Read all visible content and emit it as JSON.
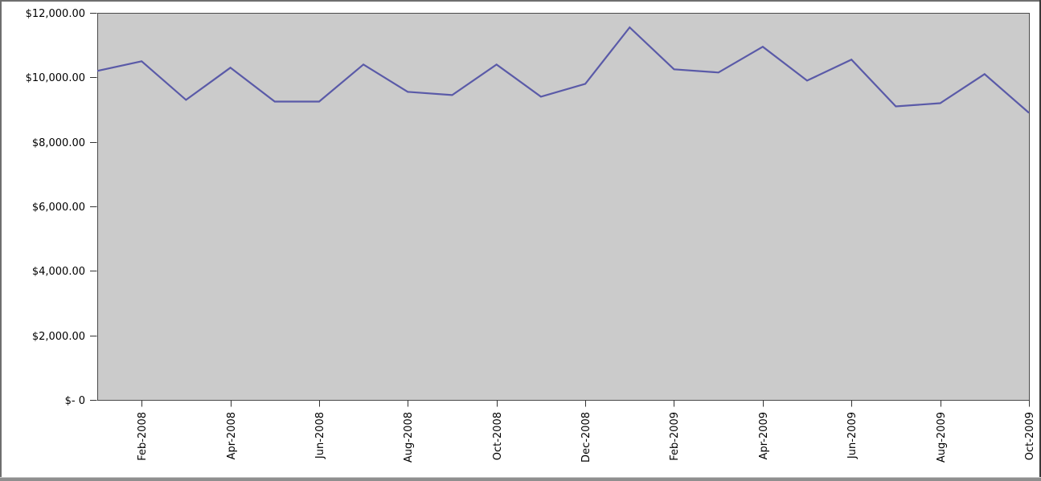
{
  "chart_data": {
    "type": "line",
    "title": "",
    "xlabel": "",
    "ylabel": "",
    "categories": [
      "Jan-2008",
      "Feb-2008",
      "Mar-2008",
      "Apr-2008",
      "May-2008",
      "Jun-2008",
      "Jul-2008",
      "Aug-2008",
      "Sep-2008",
      "Oct-2008",
      "Nov-2008",
      "Dec-2008",
      "Jan-2009",
      "Feb-2009",
      "Mar-2009",
      "Apr-2009",
      "May-2009",
      "Jun-2009",
      "Jul-2009",
      "Aug-2009",
      "Sep-2009",
      "Oct-2009"
    ],
    "values": [
      10200,
      10500,
      9300,
      10300,
      9250,
      9250,
      10400,
      9550,
      9450,
      10400,
      9400,
      9800,
      11550,
      10250,
      10150,
      10950,
      9900,
      10550,
      9100,
      9200,
      10100,
      8900
    ],
    "x_tick_labels": [
      "Feb-2008",
      "Apr-2008",
      "Jun-2008",
      "Aug-2008",
      "Oct-2008",
      "Dec-2008",
      "Feb-2009",
      "Apr-2009",
      "Jun-2009",
      "Aug-2009",
      "Oct-2009"
    ],
    "x_tick_interval": 2,
    "y_ticks": [
      12000,
      10000,
      8000,
      6000,
      4000,
      2000,
      0
    ],
    "y_tick_labels": [
      "$12,000.00",
      "$10,000.00",
      "$8,000.00",
      "$6,000.00",
      "$4,000.00",
      "$2,000.00",
      "$- 0"
    ],
    "ylim": [
      0,
      12000
    ],
    "grid": false,
    "legend": false,
    "x_label_rotation_degrees": -90,
    "colors": {
      "line": "#5a5aa8",
      "plot_background": "#cbcbcb",
      "plot_border": "#4a4a4a",
      "tick": "#333333",
      "text": "#000000",
      "page_background": "#ffffff",
      "frame_edge_top_left": "#6e6e6e",
      "frame_edge_right": "#3a3a3a",
      "frame_edge_bottom": "#8f8f8f",
      "frame_edge_bottom_light": "#cccccc"
    }
  }
}
